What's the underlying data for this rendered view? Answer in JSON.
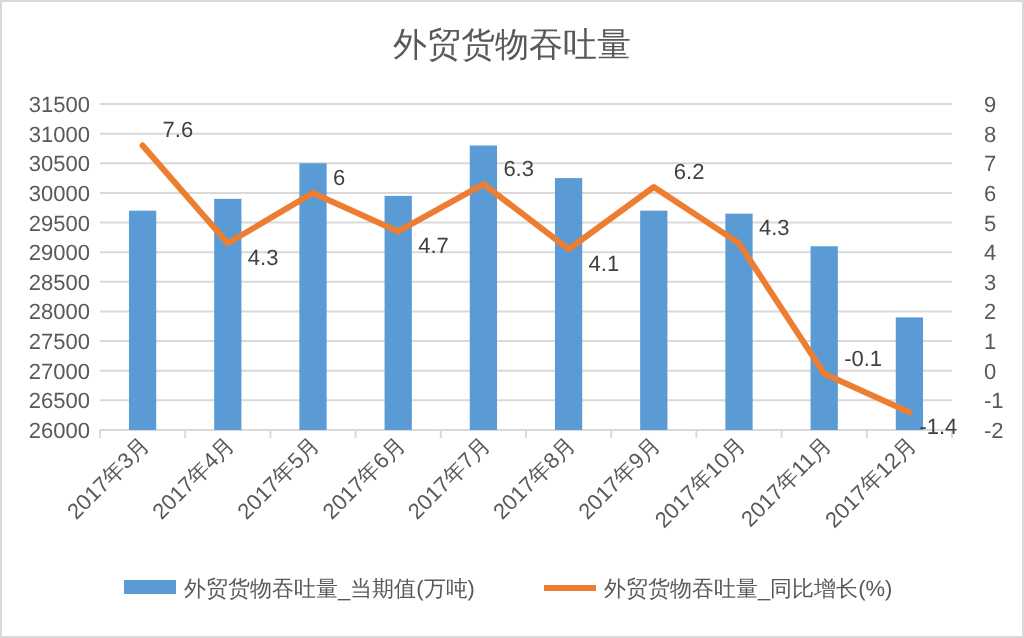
{
  "chart_data": {
    "type": "bar",
    "title": "外贸货物吞吐量",
    "categories": [
      "2017年3月",
      "2017年4月",
      "2017年5月",
      "2017年6月",
      "2017年7月",
      "2017年8月",
      "2017年9月",
      "2017年10月",
      "2017年11月",
      "2017年12月"
    ],
    "series": [
      {
        "name": "外贸货物吞吐量_当期值(万吨)",
        "color": "#5b9bd5",
        "values": [
          29700,
          29900,
          30500,
          29950,
          30800,
          30250,
          29700,
          29650,
          29100,
          27900
        ]
      },
      {
        "name": "外贸货物吞吐量_同比增长(%)",
        "type": "line",
        "axis": "y2",
        "color": "#ed7d31",
        "values": [
          7.6,
          4.3,
          6,
          4.7,
          6.3,
          4.1,
          6.2,
          4.3,
          -0.1,
          -1.4
        ],
        "value_labels": [
          "7.6",
          "4.3",
          "6",
          "4.7",
          "6.3",
          "4.1",
          "6.2",
          "4.3",
          "-0.1",
          "-1.4"
        ]
      }
    ],
    "ylim": [
      26000,
      31500
    ],
    "yticks": [
      26000,
      26500,
      27000,
      27500,
      28000,
      28500,
      29000,
      29500,
      30000,
      30500,
      31000,
      31500
    ],
    "y2lim": [
      -2,
      9
    ],
    "y2ticks": [
      -2,
      -1,
      0,
      1,
      2,
      3,
      4,
      5,
      6,
      7,
      8,
      9
    ],
    "grid": "y",
    "legend": "bottom",
    "marker": "none",
    "line_style": "solid"
  }
}
